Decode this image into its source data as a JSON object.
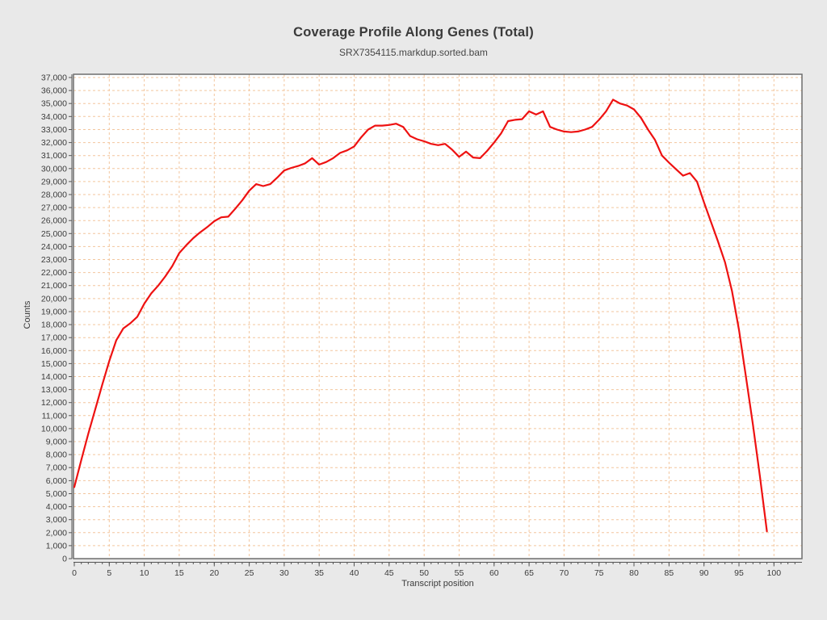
{
  "chart_data": {
    "type": "line",
    "title": "Coverage Profile Along Genes (Total)",
    "subtitle": "SRX7354115.markdup.sorted.bam",
    "xlabel": "Transcript position",
    "ylabel": "Counts",
    "x_start": 0,
    "x_step": 1,
    "values": [
      5500,
      7600,
      9600,
      11500,
      13400,
      15200,
      16800,
      17700,
      18100,
      18600,
      19600,
      20400,
      21000,
      21700,
      22500,
      23500,
      24100,
      24650,
      25100,
      25500,
      25950,
      26250,
      26300,
      26900,
      27550,
      28300,
      28800,
      28650,
      28800,
      29300,
      29850,
      30050,
      30200,
      30400,
      30800,
      30300,
      30500,
      30800,
      31200,
      31400,
      31700,
      32400,
      33000,
      33300,
      33300,
      33350,
      33450,
      33200,
      32500,
      32250,
      32100,
      31900,
      31800,
      31900,
      31450,
      30900,
      31300,
      30850,
      30800,
      31350,
      32000,
      32700,
      33650,
      33750,
      33800,
      34400,
      34150,
      34400,
      33200,
      33000,
      32850,
      32800,
      32850,
      33000,
      33200,
      33750,
      34400,
      35300,
      35000,
      34850,
      34550,
      33900,
      33000,
      32200,
      31000,
      30450,
      29950,
      29450,
      29650,
      29000,
      27400,
      25900,
      24400,
      22800,
      20600,
      17600,
      14000,
      10300,
      6300,
      2100
    ],
    "x_axis": {
      "min": 0,
      "max": 100,
      "major_tick_step": 5,
      "minor_tick_step": 1
    },
    "y_axis": {
      "min": 0,
      "max": 37000,
      "tick_step": 1000,
      "tick_format": "thousands-comma"
    },
    "grid": {
      "horizontal_step": 1000,
      "vertical_step": 5,
      "style": "dashed"
    },
    "legend": null,
    "colors": {
      "line": "#ee1111",
      "grid": "#f3c69e",
      "plot_bg": "#ffffff",
      "page_bg": "#e9e9e9",
      "border": "#6e6e6e",
      "axis": "#555555",
      "text": "#3c3c3c"
    }
  }
}
